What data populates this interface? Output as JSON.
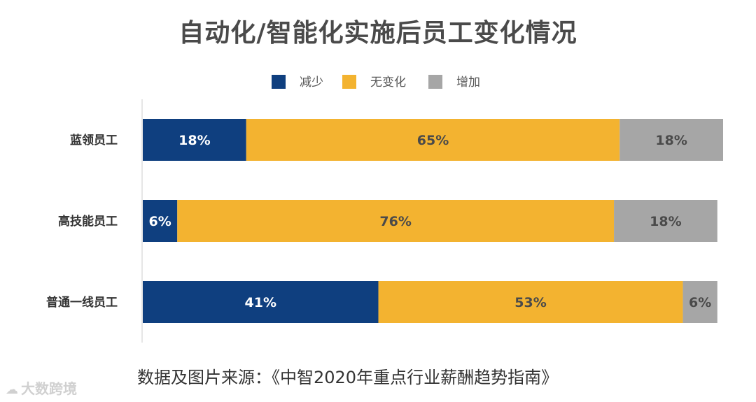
{
  "chart_data": {
    "type": "bar",
    "orientation": "horizontal",
    "stacked": true,
    "title": "自动化/智能化实施后员工变化情况",
    "categories": [
      "蓝领员工",
      "高技能员工",
      "普通一线员工"
    ],
    "series": [
      {
        "name": "减少",
        "color": "#0f3f7f",
        "values": [
          18,
          6,
          41
        ],
        "labels": [
          "18%",
          "6%",
          "41%"
        ]
      },
      {
        "name": "无变化",
        "color": "#f3b330",
        "values": [
          65,
          76,
          53
        ],
        "labels": [
          "65%",
          "76%",
          "53%"
        ]
      },
      {
        "name": "增加",
        "color": "#a6a6a6",
        "values": [
          18,
          18,
          6
        ],
        "labels": [
          "18%",
          "18%",
          "6%"
        ]
      }
    ],
    "xlim": [
      0,
      101
    ],
    "legend_position": "top-center",
    "grid": false
  },
  "source_text": "数据及图片来源：《中智2020年重点行业薪酬趋势指南》",
  "watermark": {
    "icon": "cloud-logo-icon",
    "text": "大数跨境"
  }
}
